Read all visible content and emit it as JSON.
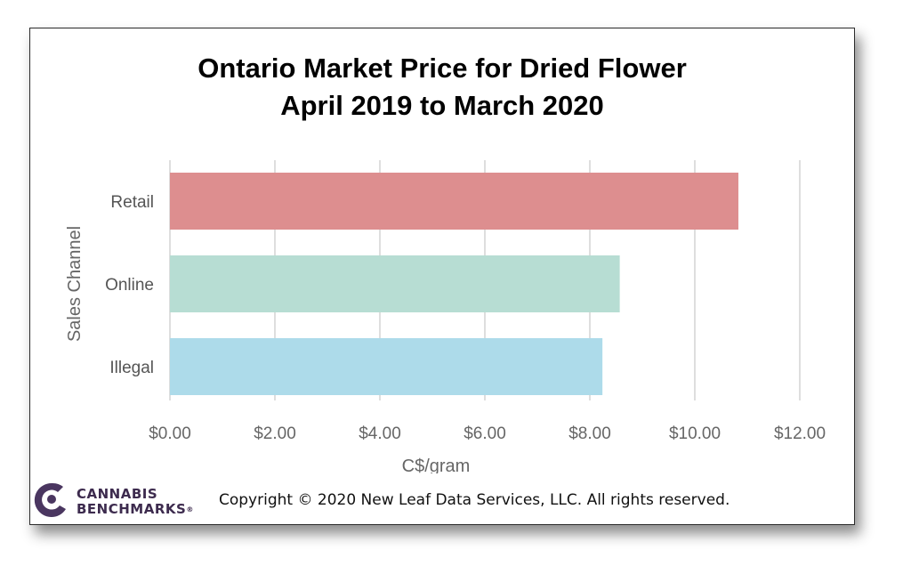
{
  "title_lines": [
    "Ontario Market Price for Dried Flower",
    "April 2019 to March 2020"
  ],
  "colors": {
    "Retail": "#dd8e8f",
    "Online": "#b7ddd3",
    "Illegal": "#addbea",
    "grid": "#cccccc",
    "logo": "#4a3660"
  },
  "chart_data": {
    "type": "bar",
    "orientation": "horizontal",
    "categories": [
      "Retail",
      "Online",
      "Illegal"
    ],
    "values": [
      10.83,
      8.57,
      8.24
    ],
    "xlabel": "C$/gram",
    "ylabel": "Sales Channel",
    "xlim": [
      0,
      12
    ],
    "xticks": [
      0,
      2,
      4,
      6,
      8,
      10,
      12
    ],
    "xtick_labels": [
      "$0.00",
      "$2.00",
      "$4.00",
      "$6.00",
      "$8.00",
      "$10.00",
      "$12.00"
    ],
    "grid": "vertical",
    "legend": "none"
  },
  "footer": {
    "logo_line1": "CANNABIS",
    "logo_line2": "BENCHMARKS",
    "logo_mark": "®",
    "copyright": "Copyright © 2020 New Leaf Data Services, LLC.  All rights reserved."
  }
}
